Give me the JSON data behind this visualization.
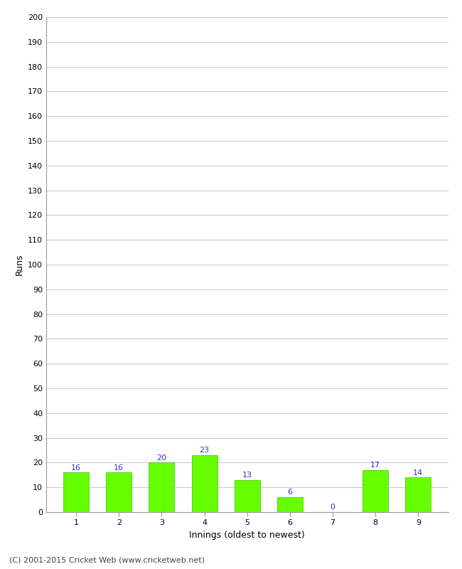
{
  "innings": [
    1,
    2,
    3,
    4,
    5,
    6,
    7,
    8,
    9
  ],
  "runs": [
    16,
    16,
    20,
    23,
    13,
    6,
    0,
    17,
    14
  ],
  "bar_color": "#66ff00",
  "bar_edge_color": "#44bb00",
  "label_color": "#3333cc",
  "xlabel": "Innings (oldest to newest)",
  "ylabel": "Runs",
  "ylim": [
    0,
    200
  ],
  "yticks": [
    0,
    10,
    20,
    30,
    40,
    50,
    60,
    70,
    80,
    90,
    100,
    110,
    120,
    130,
    140,
    150,
    160,
    170,
    180,
    190,
    200
  ],
  "grid_color": "#cccccc",
  "background_color": "#ffffff",
  "footer": "(C) 2001-2015 Cricket Web (www.cricketweb.net)",
  "label_fontsize": 8,
  "axis_label_fontsize": 9,
  "tick_fontsize": 8,
  "footer_fontsize": 8
}
